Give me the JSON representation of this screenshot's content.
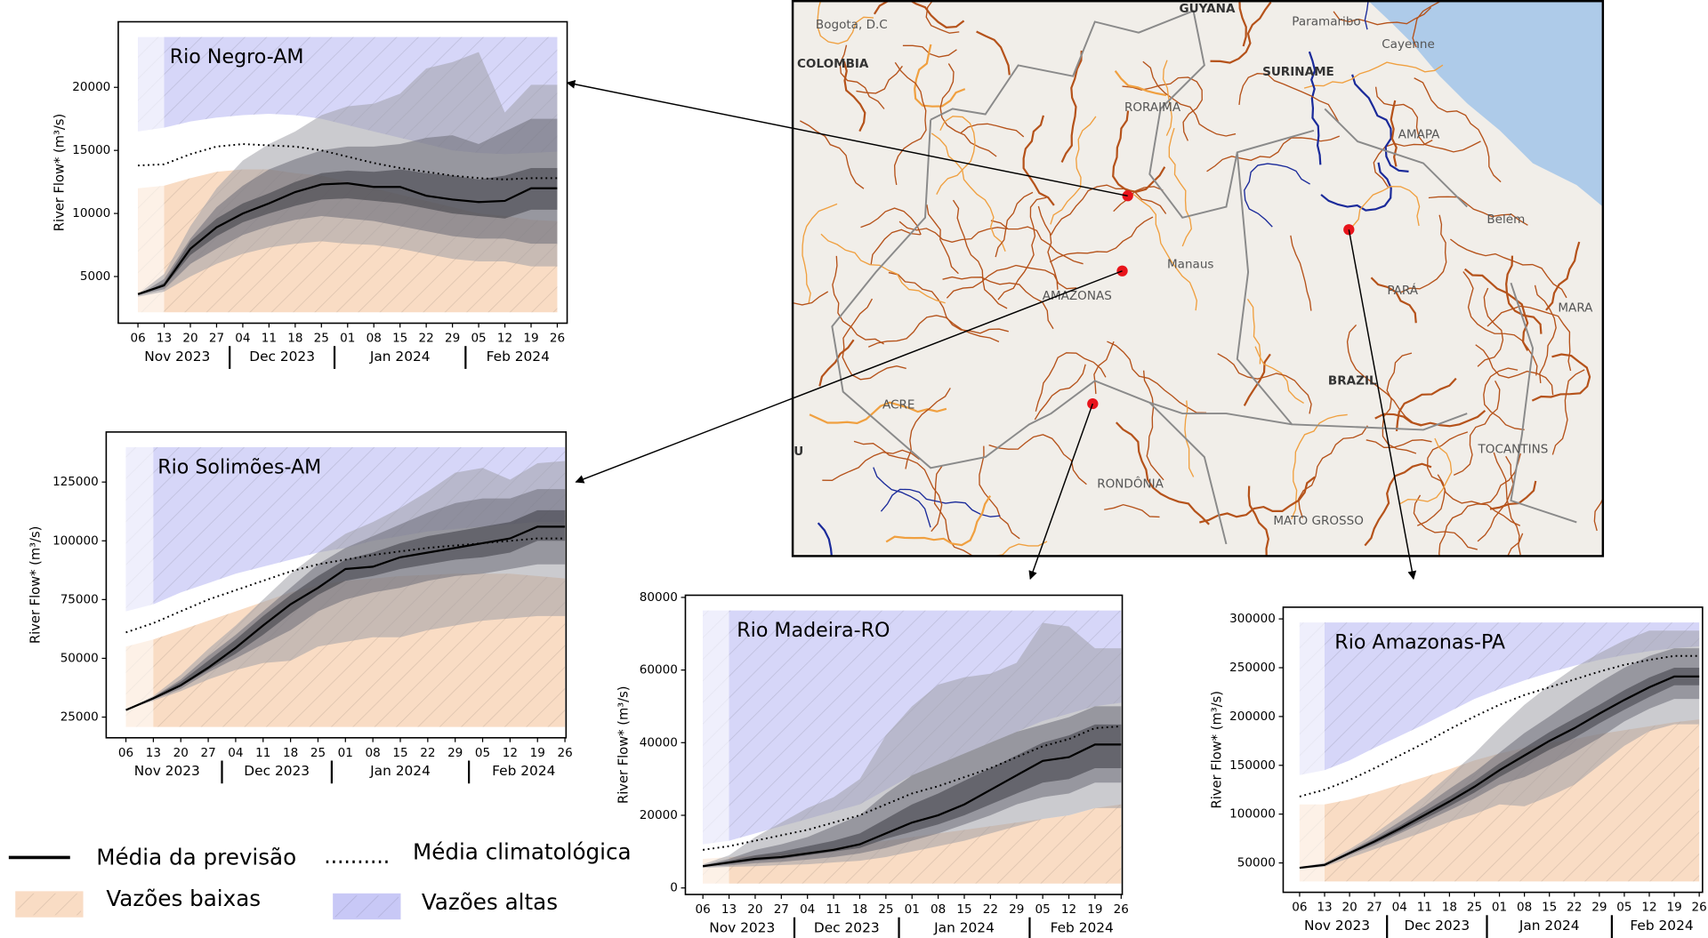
{
  "chart_data": [
    {
      "type": "fan",
      "title": "Rio Negro-AM",
      "y_label": "River Flow* (m³/s)",
      "categories": [
        "06",
        "13",
        "20",
        "27",
        "04",
        "11",
        "18",
        "25",
        "01",
        "08",
        "15",
        "22",
        "29",
        "05",
        "12",
        "19",
        "26"
      ],
      "x_groups": [
        "Nov 2023",
        "Dec 2023",
        "Jan 2024",
        "Feb 2024"
      ],
      "ylim": [
        1300,
        25200
      ],
      "yticks": [
        5000,
        10000,
        15000,
        20000
      ],
      "forecast_mean": {
        "color": "#000000",
        "values": [
          3600,
          4300,
          7200,
          8900,
          10000,
          10800,
          11700,
          12300,
          12400,
          12100,
          12100,
          11400,
          11100,
          10900,
          11000,
          12000,
          12000
        ]
      },
      "clim_mean": {
        "color": "#000000",
        "values": [
          13800,
          13900,
          14700,
          15300,
          15500,
          15400,
          15300,
          15000,
          14500,
          14000,
          13600,
          13300,
          13000,
          12800,
          12700,
          12800,
          12800
        ]
      },
      "low_flow_upper": {
        "color": "#f9dcc4",
        "values": [
          12000,
          12200,
          12800,
          13300,
          13500,
          13500,
          13200,
          13000,
          12500,
          12000,
          11500,
          11000,
          10500,
          10000,
          9800,
          9500,
          9400
        ]
      },
      "high_flow_lower": {
        "color": "#d6d6f8",
        "values": [
          16500,
          16800,
          17300,
          17600,
          17800,
          17900,
          17800,
          17500,
          17000,
          16500,
          16000,
          15500,
          15000,
          14800,
          14700,
          14800,
          14900
        ]
      },
      "spread": [
        {
          "color": "#a0a0a8",
          "lower": [
            3400,
            3800,
            5000,
            6000,
            6800,
            7300,
            7600,
            7800,
            7600,
            7500,
            7200,
            6800,
            6400,
            6200,
            6200,
            5800,
            5800
          ],
          "upper": [
            3600,
            5200,
            9000,
            12000,
            14200,
            15500,
            16500,
            17800,
            18500,
            18700,
            19500,
            21500,
            22000,
            22800,
            18000,
            20200,
            20200
          ]
        },
        {
          "color": "#6e6e78",
          "lower": [
            3500,
            4000,
            6000,
            7200,
            8300,
            9000,
            9500,
            9800,
            9600,
            9400,
            9000,
            8600,
            8200,
            8000,
            8000,
            7600,
            7600
          ],
          "upper": [
            3500,
            4800,
            8000,
            10500,
            12200,
            13500,
            14300,
            15000,
            15300,
            15300,
            15500,
            16000,
            16200,
            15500,
            16500,
            17500,
            17500
          ]
        },
        {
          "color": "#3c3c44",
          "lower": [
            3500,
            4200,
            6700,
            8200,
            9300,
            10000,
            10600,
            11100,
            11200,
            11000,
            10800,
            10400,
            10000,
            9800,
            9600,
            10300,
            10300
          ],
          "upper": [
            3500,
            4500,
            7800,
            9600,
            10800,
            11600,
            12500,
            13200,
            13400,
            13300,
            13500,
            13200,
            13000,
            12700,
            13000,
            13600,
            13600
          ]
        }
      ]
    },
    {
      "type": "fan",
      "title": "Rio Solimões-AM",
      "y_label": "River Flow* (m³/s)",
      "categories": [
        "06",
        "13",
        "20",
        "27",
        "04",
        "11",
        "18",
        "25",
        "01",
        "08",
        "15",
        "22",
        "29",
        "05",
        "12",
        "19",
        "26"
      ],
      "x_groups": [
        "Nov 2023",
        "Dec 2023",
        "Jan 2024",
        "Feb 2024"
      ],
      "ylim": [
        16200,
        146300
      ],
      "yticks": [
        25000,
        50000,
        75000,
        100000,
        125000
      ],
      "forecast_mean": {
        "color": "#000000",
        "values": [
          28000,
          33000,
          38500,
          46000,
          54500,
          64000,
          73000,
          80000,
          88000,
          89000,
          93000,
          95000,
          97000,
          99000,
          101000,
          106000,
          106000
        ]
      },
      "clim_mean": {
        "color": "#000000",
        "values": [
          61000,
          65000,
          70000,
          75000,
          79000,
          83000,
          87000,
          90000,
          92000,
          94000,
          95500,
          97000,
          98000,
          99000,
          100000,
          101000,
          101000
        ]
      },
      "low_flow_upper": {
        "color": "#f9dcc4",
        "values": [
          55000,
          58000,
          62000,
          66000,
          70000,
          74000,
          78000,
          81000,
          83000,
          84000,
          85000,
          85500,
          86000,
          86000,
          86000,
          85000,
          84000
        ]
      },
      "high_flow_lower": {
        "color": "#d6d6f8",
        "values": [
          70000,
          73000,
          78000,
          82000,
          86000,
          89000,
          92000,
          95000,
          97000,
          100000,
          102000,
          104000,
          105000,
          106000,
          107000,
          108000,
          108000
        ]
      },
      "spread": [
        {
          "color": "#a0a0a8",
          "lower": [
            28000,
            32000,
            36000,
            41000,
            45000,
            48000,
            49000,
            55000,
            57000,
            59000,
            59000,
            62000,
            64000,
            66000,
            67000,
            68000,
            68000
          ],
          "upper": [
            28000,
            34000,
            43000,
            54000,
            64000,
            75000,
            86000,
            95000,
            103000,
            108000,
            114000,
            121000,
            129000,
            131000,
            126000,
            133000,
            134000
          ]
        },
        {
          "color": "#6e6e78",
          "lower": [
            28000,
            32500,
            37000,
            44000,
            50000,
            56000,
            62000,
            70000,
            75000,
            78000,
            80000,
            83000,
            85000,
            86000,
            88000,
            90000,
            90000
          ],
          "upper": [
            28000,
            33500,
            41000,
            51000,
            60000,
            70000,
            80000,
            90000,
            97000,
            102000,
            107000,
            112000,
            116000,
            118000,
            118000,
            122000,
            122000
          ]
        },
        {
          "color": "#3c3c44",
          "lower": [
            28000,
            32500,
            38000,
            45000,
            52000,
            60000,
            69000,
            77000,
            83000,
            85000,
            88000,
            90000,
            92000,
            93000,
            95000,
            100000,
            100000
          ],
          "upper": [
            28000,
            33500,
            40000,
            49000,
            58000,
            68000,
            77000,
            85000,
            92000,
            95000,
            99000,
            102000,
            104000,
            106000,
            108000,
            113000,
            113000
          ]
        }
      ]
    },
    {
      "type": "fan",
      "title": "Rio Madeira-RO",
      "y_label": "River Flow* (m³/s)",
      "categories": [
        "06",
        "13",
        "20",
        "27",
        "04",
        "11",
        "18",
        "25",
        "01",
        "08",
        "15",
        "22",
        "29",
        "05",
        "12",
        "19",
        "26"
      ],
      "x_groups": [
        "Nov 2023",
        "Dec 2023",
        "Jan 2024",
        "Feb 2024"
      ],
      "ylim": [
        -1800,
        80600
      ],
      "yticks": [
        0,
        20000,
        40000,
        60000,
        80000
      ],
      "forecast_mean": {
        "color": "#000000",
        "values": [
          6000,
          7000,
          8000,
          8500,
          9500,
          10500,
          12000,
          15000,
          18000,
          20000,
          23000,
          27000,
          31000,
          35000,
          36000,
          39500,
          39500
        ]
      },
      "clim_mean": {
        "color": "#000000",
        "values": [
          10500,
          11500,
          13000,
          14500,
          16000,
          18000,
          20000,
          23000,
          26000,
          28000,
          30500,
          33000,
          36000,
          39000,
          41000,
          44000,
          44500
        ]
      },
      "low_flow_upper": {
        "color": "#f9dcc4",
        "values": [
          8000,
          8500,
          9000,
          9500,
          10000,
          11000,
          12000,
          13000,
          14000,
          15000,
          16000,
          17000,
          18000,
          19000,
          20000,
          22000,
          23000
        ]
      },
      "high_flow_lower": {
        "color": "#d6d6f8",
        "values": [
          12000,
          13000,
          15000,
          17000,
          19000,
          21000,
          23000,
          27000,
          31000,
          34000,
          37000,
          40000,
          43000,
          46000,
          48000,
          50000,
          51000
        ]
      },
      "spread": [
        {
          "color": "#a0a0a8",
          "lower": [
            5500,
            5800,
            6000,
            6300,
            6500,
            7000,
            7500,
            8500,
            10000,
            11500,
            13000,
            15000,
            17000,
            19000,
            20000,
            22000,
            22000
          ],
          "upper": [
            6500,
            9000,
            14000,
            18000,
            22000,
            25000,
            30000,
            42000,
            50000,
            56000,
            58000,
            59000,
            62000,
            73000,
            72000,
            66000,
            66000
          ]
        },
        {
          "color": "#6e6e78",
          "lower": [
            5800,
            6200,
            6800,
            7200,
            7800,
            8500,
            9500,
            11000,
            13000,
            15000,
            17500,
            20000,
            23000,
            25000,
            26000,
            29000,
            29000
          ],
          "upper": [
            6200,
            8000,
            10500,
            12000,
            14000,
            17000,
            20000,
            26000,
            31000,
            34000,
            37000,
            40000,
            43000,
            45000,
            47000,
            50000,
            50000
          ]
        },
        {
          "color": "#3c3c44",
          "lower": [
            5900,
            6600,
            7500,
            8000,
            9000,
            10000,
            11000,
            13500,
            15500,
            17500,
            20000,
            23000,
            26000,
            29000,
            30000,
            33000,
            33000
          ],
          "upper": [
            6100,
            7500,
            9000,
            10000,
            11500,
            13000,
            15000,
            19000,
            23000,
            26000,
            29500,
            33000,
            36500,
            40000,
            42000,
            45000,
            45000
          ]
        }
      ]
    },
    {
      "type": "fan",
      "title": "Rio Amazonas-PA",
      "y_label": "River Flow* (m³/s)",
      "categories": [
        "06",
        "13",
        "20",
        "27",
        "04",
        "11",
        "18",
        "25",
        "01",
        "08",
        "15",
        "22",
        "29",
        "05",
        "12",
        "19",
        "26"
      ],
      "x_groups": [
        "Nov 2023",
        "Dec 2023",
        "Jan 2024",
        "Feb 2024"
      ],
      "ylim": [
        19900,
        312000
      ],
      "yticks": [
        50000,
        100000,
        150000,
        200000,
        250000,
        300000
      ],
      "forecast_mean": {
        "color": "#000000",
        "values": [
          45000,
          48000,
          60000,
          72000,
          85000,
          99000,
          113000,
          128000,
          145000,
          160000,
          175000,
          188000,
          203000,
          217000,
          230000,
          241000,
          241000
        ]
      },
      "clim_mean": {
        "color": "#000000",
        "values": [
          118000,
          125000,
          135000,
          147000,
          160000,
          173000,
          187000,
          200000,
          212000,
          222000,
          230000,
          238000,
          246000,
          253000,
          258000,
          262000,
          262000
        ]
      },
      "low_flow_upper": {
        "color": "#f9dcc4",
        "values": [
          110000,
          110000,
          115000,
          122000,
          130000,
          138000,
          146000,
          155000,
          162000,
          168000,
          173000,
          177000,
          182000,
          186000,
          190000,
          194000,
          197000
        ]
      },
      "high_flow_lower": {
        "color": "#d6d6f8",
        "values": [
          140000,
          145000,
          155000,
          168000,
          180000,
          192000,
          205000,
          218000,
          228000,
          237000,
          245000,
          252000,
          258000,
          263000,
          267000,
          270000,
          272000
        ]
      },
      "spread": [
        {
          "color": "#a0a0a8",
          "lower": [
            44000,
            46000,
            55000,
            64000,
            73000,
            82000,
            92000,
            100000,
            110000,
            108000,
            118000,
            130000,
            150000,
            170000,
            185000,
            192000,
            192000
          ],
          "upper": [
            46000,
            50000,
            64000,
            80000,
            98000,
            118000,
            140000,
            162000,
            188000,
            212000,
            232000,
            250000,
            265000,
            278000,
            288000,
            288000,
            288000
          ]
        },
        {
          "color": "#6e6e78",
          "lower": [
            44500,
            47000,
            58000,
            68000,
            80000,
            92000,
            104000,
            116000,
            130000,
            138000,
            150000,
            163000,
            178000,
            195000,
            208000,
            218000,
            218000
          ],
          "upper": [
            45500,
            49000,
            62000,
            76000,
            92000,
            108000,
            126000,
            143000,
            163000,
            183000,
            200000,
            218000,
            235000,
            250000,
            262000,
            270000,
            270000
          ]
        },
        {
          "color": "#3c3c44",
          "lower": [
            44700,
            47500,
            59000,
            70000,
            82000,
            95000,
            108000,
            122000,
            138000,
            152000,
            166000,
            178000,
            193000,
            207000,
            220000,
            232000,
            232000
          ],
          "upper": [
            45300,
            48500,
            61000,
            74000,
            88000,
            103000,
            118000,
            134000,
            152000,
            168000,
            184000,
            198000,
            212000,
            227000,
            240000,
            250000,
            250000
          ]
        }
      ]
    }
  ],
  "legend": {
    "items": [
      {
        "label": "Média da previsão",
        "color": "#000000",
        "style": "solid"
      },
      {
        "label": "Média climatológica",
        "color": "#000000",
        "style": "dotted"
      },
      {
        "label": "Vazões baixas",
        "color": "#f9dcc4",
        "style": "hatch"
      },
      {
        "label": "Vazões altas",
        "color": "#c8c8f6",
        "style": "hatch"
      }
    ]
  },
  "map": {
    "labels": [
      "Bogota, D.C",
      "COLOMBIA",
      "GUYANA",
      "Paramaribo",
      "Cayenne",
      "SURINAME",
      "RORAIMA",
      "AMAPA",
      "Belém",
      "Manaus",
      "AMAZONAS",
      "PARÁ",
      "MARA",
      "BRAZIL",
      "ACRE",
      "RONDÔNIA",
      "TOCANTINS",
      "MATO GROSSO",
      "U"
    ]
  }
}
